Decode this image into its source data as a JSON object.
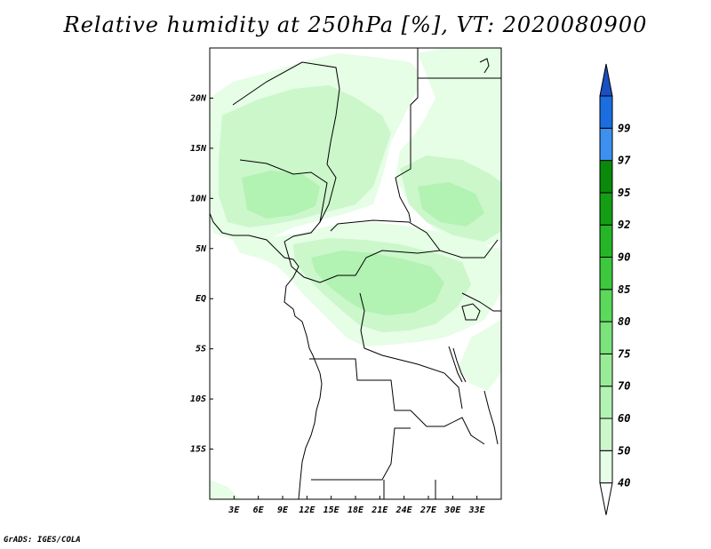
{
  "title": "Relative humidity at 250hPa [%], VT: 2020080900",
  "credit": "GrADS: IGES/COLA",
  "map": {
    "lon_range": [
      0,
      36
    ],
    "lat_range": [
      -20,
      25
    ],
    "lon_ticks": [
      {
        "value": 3,
        "label": "3E"
      },
      {
        "value": 6,
        "label": "6E"
      },
      {
        "value": 9,
        "label": "9E"
      },
      {
        "value": 12,
        "label": "12E"
      },
      {
        "value": 15,
        "label": "15E"
      },
      {
        "value": 18,
        "label": "18E"
      },
      {
        "value": 21,
        "label": "21E"
      },
      {
        "value": 24,
        "label": "24E"
      },
      {
        "value": 27,
        "label": "27E"
      },
      {
        "value": 30,
        "label": "30E"
      },
      {
        "value": 33,
        "label": "33E"
      }
    ],
    "lat_ticks": [
      {
        "value": 20,
        "label": "20N"
      },
      {
        "value": 15,
        "label": "15N"
      },
      {
        "value": 10,
        "label": "10N"
      },
      {
        "value": 5,
        "label": "5N"
      },
      {
        "value": 0,
        "label": "EQ"
      },
      {
        "value": -5,
        "label": "5S"
      },
      {
        "value": -10,
        "label": "10S"
      },
      {
        "value": -15,
        "label": "15S"
      }
    ]
  },
  "colorbar": {
    "bins": [
      {
        "label": "40",
        "color": "#e6fde6"
      },
      {
        "label": "50",
        "color": "#cbf7cb"
      },
      {
        "label": "60",
        "color": "#b2f2b2"
      },
      {
        "label": "70",
        "color": "#98ec98"
      },
      {
        "label": "75",
        "color": "#7be37b"
      },
      {
        "label": "80",
        "color": "#5ad95a"
      },
      {
        "label": "85",
        "color": "#3dc83d"
      },
      {
        "label": "90",
        "color": "#26b526"
      },
      {
        "label": "92",
        "color": "#149e14"
      },
      {
        "label": "95",
        "color": "#0a8a0a"
      },
      {
        "label": "97",
        "color": "#3d8ff0"
      },
      {
        "label": "99",
        "color": "#1c6ee0"
      }
    ],
    "top_arrow_color": "#1a4fc4",
    "bottom_arrow_color": "#ffffff"
  },
  "humidity_colors": {
    "level_40": "#e6fde6",
    "level_50": "#cbf7cb",
    "level_60": "#b2f2b2"
  }
}
